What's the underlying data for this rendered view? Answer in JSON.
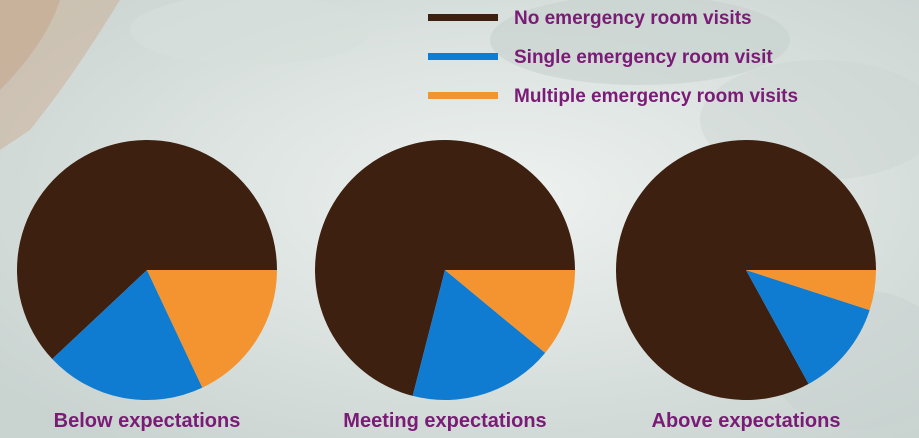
{
  "chart_data": [
    {
      "type": "pie",
      "title": "Below expectations",
      "slices": [
        {
          "label": "No emergency room visits",
          "value": 62
        },
        {
          "label": "Single emergency room visit",
          "value": 20
        },
        {
          "label": "Multiple emergency room visits",
          "value": 18
        }
      ]
    },
    {
      "type": "pie",
      "title": "Meeting expectations",
      "slices": [
        {
          "label": "No emergency room visits",
          "value": 71
        },
        {
          "label": "Single emergency room visit",
          "value": 18
        },
        {
          "label": "Multiple emergency room visits",
          "value": 11
        }
      ]
    },
    {
      "type": "pie",
      "title": "Above expectations",
      "slices": [
        {
          "label": "No emergency room visits",
          "value": 83
        },
        {
          "label": "Single emergency room visit",
          "value": 12
        },
        {
          "label": "Multiple emergency room visits",
          "value": 5
        }
      ]
    }
  ],
  "legend": {
    "placement": "top-right",
    "items": [
      {
        "label": "No emergency room visits",
        "color": "#3d2010"
      },
      {
        "label": "Single emergency room visit",
        "color": "#0f7bd1"
      },
      {
        "label": "Multiple emergency room visits",
        "color": "#f39431"
      }
    ]
  },
  "colors": {
    "label_text": "#7a1b76",
    "background": "#dfe6e3"
  }
}
